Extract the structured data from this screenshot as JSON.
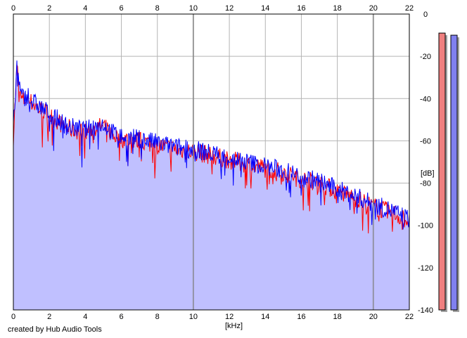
{
  "chart_data": {
    "type": "area",
    "title": "",
    "xlabel": "[kHz]",
    "ylabel": "[dB]",
    "xlim": [
      0,
      22
    ],
    "ylim": [
      -140,
      0
    ],
    "x_ticks": [
      0,
      2,
      4,
      6,
      8,
      10,
      12,
      14,
      16,
      18,
      20,
      22
    ],
    "y_ticks": [
      0,
      -20,
      -40,
      -60,
      -80,
      -100,
      -120,
      -140
    ],
    "y_tick_labels": [
      "0",
      "-20",
      "-40",
      "-60",
      "-80",
      "-100",
      "-120",
      "-140"
    ],
    "grid": true,
    "x": [
      0.0,
      0.2,
      0.4,
      0.6,
      0.8,
      1.0,
      1.5,
      2.0,
      2.5,
      3.0,
      3.5,
      4.0,
      4.5,
      5.0,
      5.5,
      6.0,
      7.0,
      8.0,
      9.0,
      10.0,
      11.0,
      12.0,
      13.0,
      14.0,
      15.0,
      16.0,
      17.0,
      18.0,
      19.0,
      20.0,
      21.0,
      22.0
    ],
    "series": [
      {
        "values": [
          -58,
          -25,
          -40,
          -41,
          -39,
          -42,
          -45,
          -48,
          -51,
          -54,
          -55,
          -56,
          -54,
          -53,
          -57,
          -59,
          -60,
          -62,
          -64,
          -65,
          -67,
          -69,
          -71,
          -73,
          -75,
          -78,
          -80,
          -84,
          -87,
          -91,
          -94,
          -98
        ],
        "color": "#ff0000"
      },
      {
        "values": [
          -55,
          -24,
          -38,
          -40,
          -38,
          -41,
          -44,
          -47,
          -50,
          -53,
          -54,
          -55,
          -53,
          -52,
          -56,
          -58,
          -59,
          -61,
          -63,
          -64,
          -66,
          -68,
          -70,
          -72,
          -74,
          -77,
          -79,
          -83,
          -86,
          -90,
          -93,
          -97
        ],
        "color": "#0000ff"
      }
    ],
    "fill_color": "#c0c0ff",
    "meters": [
      {
        "level_db": -9,
        "color": "#f08080"
      },
      {
        "level_db": -10,
        "color": "#8080f0"
      }
    ]
  },
  "footer": {
    "credit": "created by Hub Audio Tools"
  }
}
